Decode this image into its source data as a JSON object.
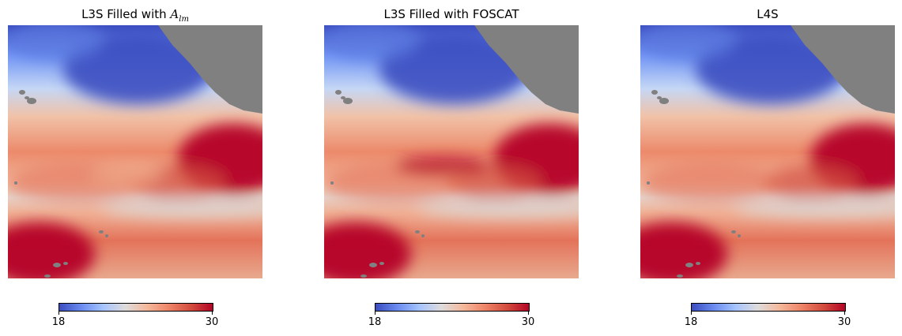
{
  "panels": [
    {
      "title_prefix": "L3S Filled with ",
      "title_symbol": "A",
      "title_sub": "lm",
      "variant": "alm"
    },
    {
      "title_prefix": "L3S Filled with FOSCAT",
      "title_symbol": "",
      "title_sub": "",
      "variant": "foscat"
    },
    {
      "title_prefix": "L4S",
      "title_symbol": "",
      "title_sub": "",
      "variant": "l4s"
    }
  ],
  "colorbar": {
    "min_label": "18",
    "max_label": "30",
    "colormap": "coolwarm",
    "colors": [
      "#3b4cc0",
      "#6a8bef",
      "#a6c4fe",
      "#dddcdc",
      "#f4b99c",
      "#ee8468",
      "#d24d3e",
      "#b40426"
    ]
  },
  "land_color": "#808080"
}
